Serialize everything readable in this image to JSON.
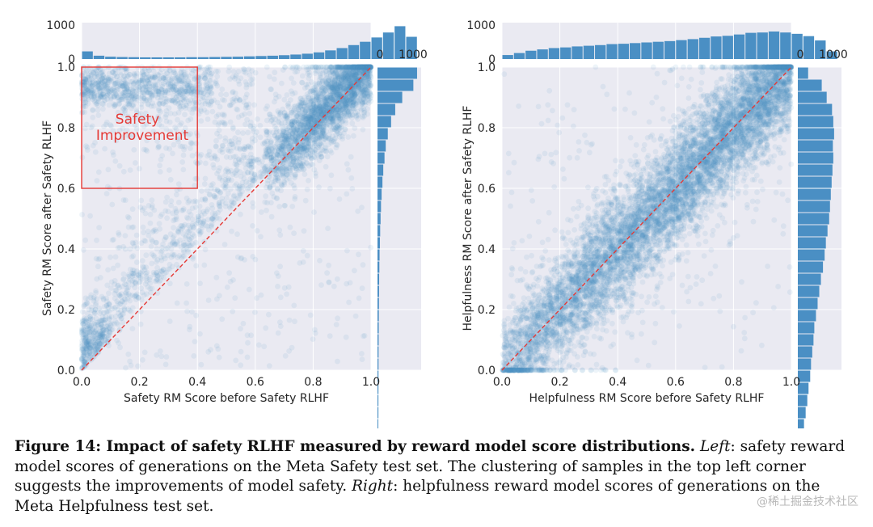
{
  "chart_data": [
    {
      "type": "scatter",
      "xlabel": "Safety RM Score before Safety RLHF",
      "ylabel": "Safety RM Score after Safety RLHF",
      "xlim": [
        0,
        1
      ],
      "ylim": [
        0,
        1
      ],
      "xticks": [
        "0.0",
        "0.2",
        "0.4",
        "0.6",
        "0.8",
        "1.0"
      ],
      "yticks": [
        "0.0",
        "0.2",
        "0.4",
        "0.6",
        "0.8",
        "1.0"
      ],
      "grid": true,
      "point_color": "#4a8fc4",
      "diagonal": {
        "from": [
          0,
          0
        ],
        "to": [
          1,
          1
        ],
        "style": "dashed",
        "color": "#e53935"
      },
      "annotation": {
        "lines": [
          "Safety",
          "Improvement"
        ],
        "box": {
          "x": [
            0.0,
            0.4
          ],
          "y": [
            0.6,
            1.0
          ]
        },
        "color": "#e53935"
      },
      "top_hist": {
        "tick_labels": [
          "1000",
          "0"
        ],
        "max_value": 1000,
        "bin_width": 0.04,
        "counts": [
          230,
          100,
          70,
          60,
          55,
          50,
          50,
          50,
          50,
          55,
          55,
          60,
          65,
          70,
          80,
          90,
          100,
          115,
          135,
          160,
          200,
          260,
          330,
          420,
          520,
          650,
          800,
          990,
          670
        ]
      },
      "right_hist": {
        "tick_labels": [
          "0",
          "1000"
        ],
        "max_value": 1000,
        "bin_width": 0.04,
        "counts_from_top": [
          960,
          870,
          600,
          430,
          330,
          250,
          200,
          170,
          140,
          120,
          100,
          85,
          75,
          65,
          58,
          50,
          45,
          40,
          38,
          35,
          32,
          30,
          28,
          26,
          25,
          24,
          23,
          22,
          22,
          20
        ]
      }
    },
    {
      "type": "scatter",
      "xlabel": "Helpfulness RM Score before Safety RLHF",
      "ylabel": "Helpfulness RM Score after Safety RLHF",
      "xlim": [
        0,
        1
      ],
      "ylim": [
        0,
        1
      ],
      "xticks": [
        "0.0",
        "0.2",
        "0.4",
        "0.6",
        "0.8",
        "1.0"
      ],
      "yticks": [
        "0.0",
        "0.2",
        "0.4",
        "0.6",
        "0.8",
        "1.0"
      ],
      "grid": true,
      "point_color": "#4a8fc4",
      "diagonal": {
        "from": [
          0,
          0
        ],
        "to": [
          1,
          1
        ],
        "style": "dashed",
        "color": "#e53935"
      },
      "top_hist": {
        "tick_labels": [
          "1000",
          "0"
        ],
        "max_value": 1000,
        "bin_width": 0.04,
        "counts": [
          120,
          180,
          250,
          290,
          330,
          350,
          380,
          400,
          420,
          450,
          460,
          480,
          500,
          520,
          540,
          570,
          600,
          640,
          680,
          700,
          740,
          790,
          800,
          830,
          800,
          760,
          690,
          560,
          230
        ]
      },
      "right_hist": {
        "tick_labels": [
          "0",
          "1000"
        ],
        "max_value": 1000,
        "bin_width": 0.04,
        "counts_from_top": [
          250,
          580,
          700,
          830,
          860,
          880,
          850,
          860,
          840,
          820,
          800,
          780,
          760,
          720,
          680,
          650,
          610,
          560,
          520,
          480,
          440,
          400,
          380,
          350,
          320,
          300,
          260,
          230,
          190,
          150
        ]
      }
    }
  ],
  "caption": {
    "label": "Figure 14: Impact of safety RLHF measured by reward model score distributions.",
    "left_word": "Left",
    "left_text": ": safety reward model scores of generations on the Meta Safety test set. The clustering of samples in the top left corner suggests the improvements of model safety.",
    "right_word": "Right",
    "right_text": ": helpfulness reward model scores of generations on the Meta Helpfulness test set."
  },
  "watermark": "@稀土掘金技术社区"
}
